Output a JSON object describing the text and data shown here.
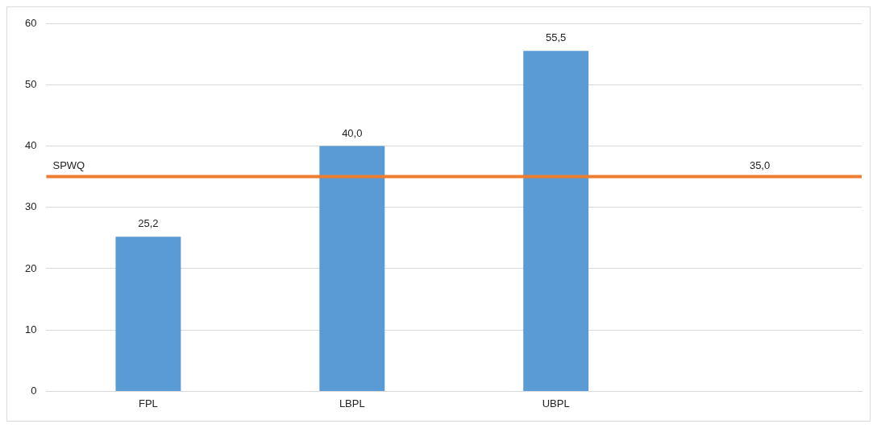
{
  "chart_data": {
    "type": "bar",
    "categories": [
      "FPL",
      "LBPL",
      "UBPL",
      null
    ],
    "series": [
      {
        "color": "#5b9bd5",
        "values": [
          25.2,
          40,
          55.5,
          null
        ],
        "value_labels": [
          "25,2",
          "40,0",
          "55,5",
          null
        ]
      }
    ],
    "ylim": [
      0,
      60
    ],
    "yticks": [
      0,
      10,
      20,
      30,
      40,
      50,
      60
    ],
    "grid": "y",
    "legend": false,
    "ref_lines": [
      {
        "axis": "y",
        "value": 35,
        "label": "SPWQ",
        "color": "#ed7d31"
      }
    ],
    "annotations": [
      {
        "text": "35,0",
        "y": 35
      }
    ]
  }
}
